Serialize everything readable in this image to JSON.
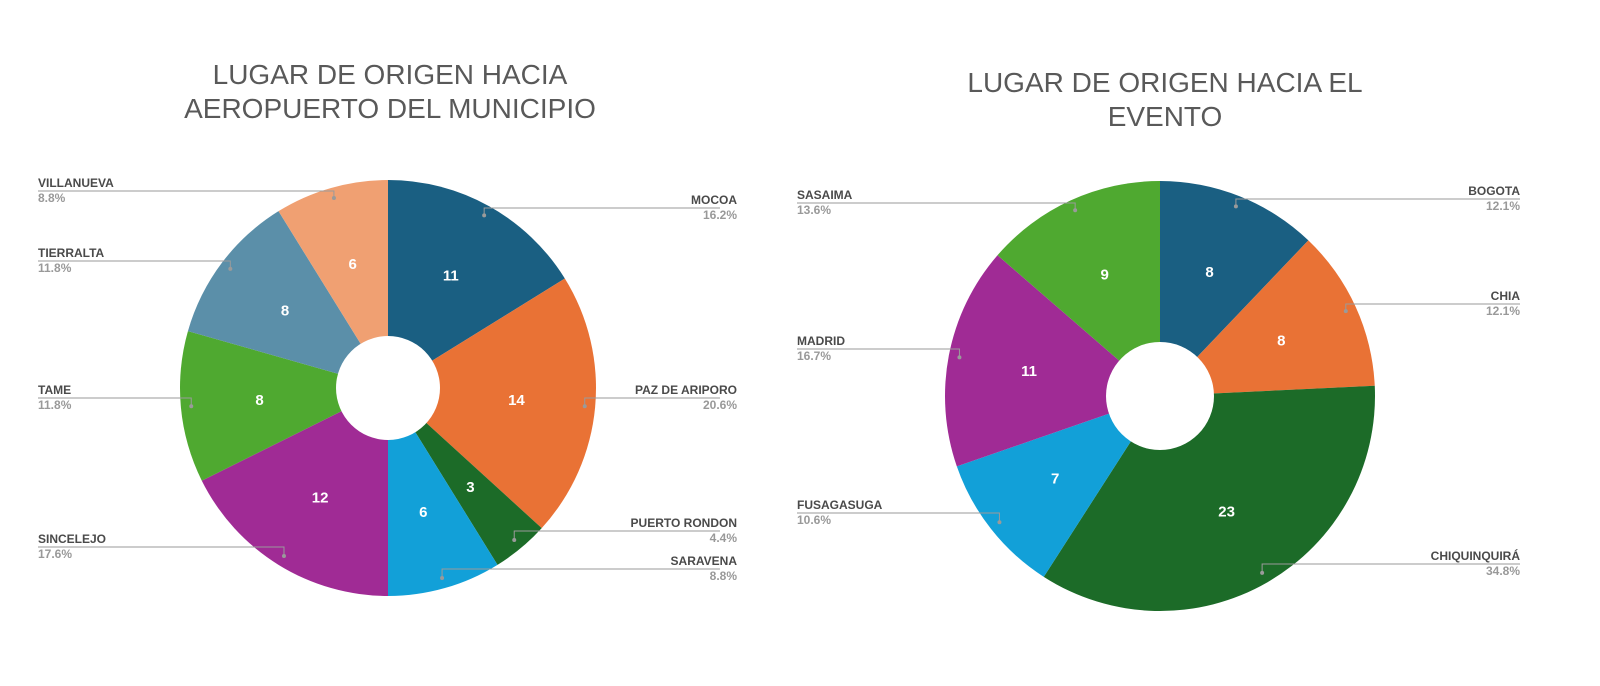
{
  "chart_data": [
    {
      "type": "pie",
      "title": "LUGAR DE ORIGEN HACIA AEROPUERTO DEL MUNICIPIO",
      "slices": [
        {
          "label": "MOCOA",
          "value": 11,
          "percent": "16.2%",
          "color": "#1a5f82"
        },
        {
          "label": "PAZ DE ARIPORO",
          "value": 14,
          "percent": "20.6%",
          "color": "#e97235"
        },
        {
          "label": "PUERTO RONDON",
          "value": 3,
          "percent": "4.4%",
          "color": "#1c6b28"
        },
        {
          "label": "SARAVENA",
          "value": 6,
          "percent": "8.8%",
          "color": "#12a0d8"
        },
        {
          "label": "SINCELEJO",
          "value": 12,
          "percent": "17.6%",
          "color": "#a02b95"
        },
        {
          "label": "TAME",
          "value": 8,
          "percent": "11.8%",
          "color": "#4fa930"
        },
        {
          "label": "TIERRALTA",
          "value": 8,
          "percent": "11.8%",
          "color": "#5b8fa9"
        },
        {
          "label": "VILLANUEVA",
          "value": 6,
          "percent": "8.8%",
          "color": "#f0a072"
        }
      ]
    },
    {
      "type": "pie",
      "title": "LUGAR DE ORIGEN HACIA EL EVENTO",
      "slices": [
        {
          "label": "BOGOTA",
          "value": 8,
          "percent": "12.1%",
          "color": "#1a5f82"
        },
        {
          "label": "CHIA",
          "value": 8,
          "percent": "12.1%",
          "color": "#e97235"
        },
        {
          "label": "CHIQUINQUIRÁ",
          "value": 23,
          "percent": "34.8%",
          "color": "#1c6b28"
        },
        {
          "label": "FUSAGASUGA",
          "value": 7,
          "percent": "10.6%",
          "color": "#12a0d8"
        },
        {
          "label": "MADRID",
          "value": 11,
          "percent": "16.7%",
          "color": "#a02b95"
        },
        {
          "label": "SASAIMA",
          "value": 9,
          "percent": "13.6%",
          "color": "#4fa930"
        }
      ]
    }
  ]
}
